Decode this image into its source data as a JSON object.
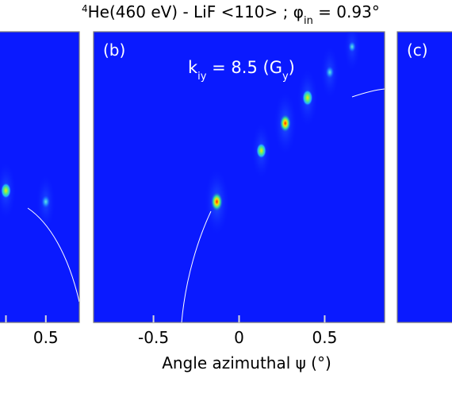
{
  "chart_data": [
    {
      "type": "heatmap",
      "panel_label": "",
      "xlim": [
        -0.85,
        0.92
      ],
      "xticks": [
        -0.5,
        0,
        0.5
      ],
      "tick_labels": [
        "",
        "",
        "0.5"
      ],
      "spots": [
        {
          "x": 0.0,
          "intensity": 0.55
        },
        {
          "x": 0.5,
          "intensity": 0.4
        }
      ]
    },
    {
      "type": "heatmap",
      "panel_label": "(b)",
      "annotation": {
        "main": "k",
        "sub": "iy",
        "value": " = 8.5 (G",
        "sub2": "y",
        "tail": ")"
      },
      "xlabel": "Angle azimuthal ψ (°)",
      "xlim": [
        -0.85,
        0.85
      ],
      "xticks": [
        -0.5,
        0,
        0.5
      ],
      "tick_labels": [
        "-0.5",
        "0",
        "0.5"
      ],
      "spots": [
        {
          "x": -0.13,
          "intensity": 1.0
        },
        {
          "x": 0.13,
          "intensity": 0.5
        },
        {
          "x": 0.27,
          "intensity": 0.85
        },
        {
          "x": 0.4,
          "intensity": 0.6
        },
        {
          "x": 0.53,
          "intensity": 0.35
        },
        {
          "x": 0.66,
          "intensity": 0.15
        }
      ]
    },
    {
      "type": "heatmap",
      "panel_label": "(c)",
      "xlim": [
        -0.85,
        0.85
      ],
      "xticks": [
        -0.5
      ],
      "tick_labels": [
        "-"
      ],
      "spots": []
    }
  ],
  "figure": {
    "title": {
      "sup": "4",
      "pre": "He(460 eV) - LiF <110> ; ",
      "phi": "φ",
      "sub": "in",
      "post": " = 0.93°"
    }
  }
}
